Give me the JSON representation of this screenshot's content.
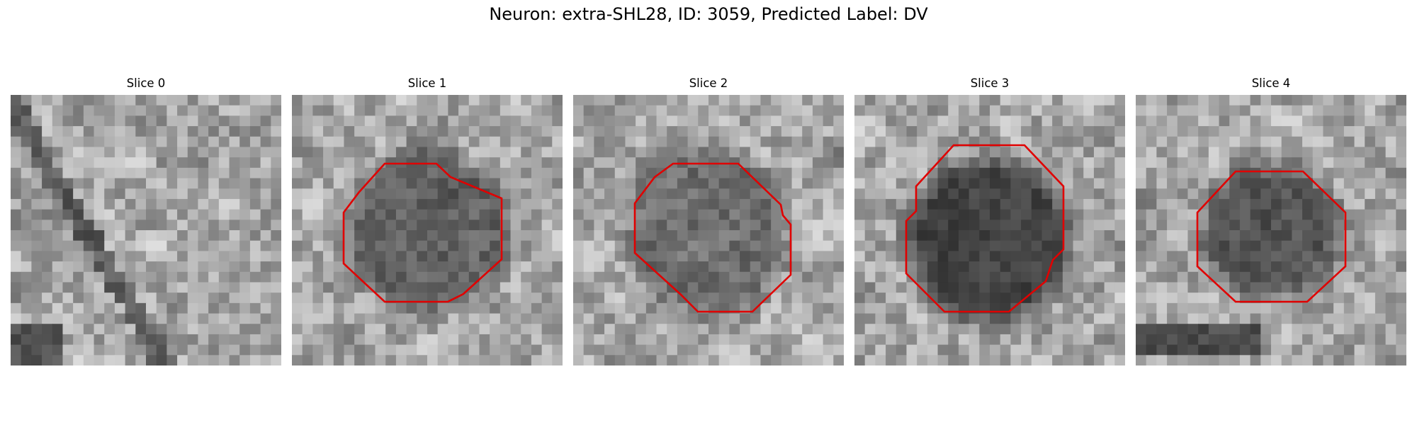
{
  "figure": {
    "title": "Neuron: extra-SHL28, ID: 3059, Predicted Label: DV"
  },
  "panels": [
    {
      "title": "Slice 0",
      "has_outline": false,
      "blob_darkness": 0.0
    },
    {
      "title": "Slice 1",
      "has_outline": true,
      "blob_darkness": 0.55
    },
    {
      "title": "Slice 2",
      "has_outline": true,
      "blob_darkness": 0.45
    },
    {
      "title": "Slice 3",
      "has_outline": true,
      "blob_darkness": 0.8
    },
    {
      "title": "Slice 4",
      "has_outline": true,
      "blob_darkness": 0.65
    }
  ],
  "colors": {
    "outline": "#e00000",
    "background": "#ffffff"
  }
}
